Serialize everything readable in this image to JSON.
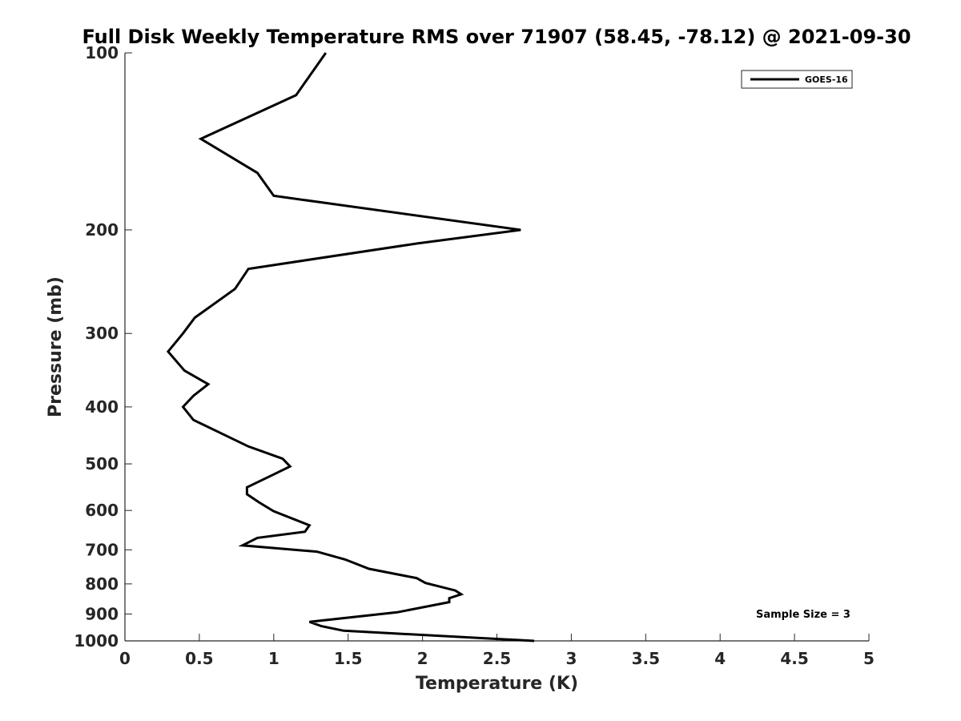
{
  "chart_data": {
    "type": "line",
    "title": "Full Disk Weekly Temperature RMS over 71907 (58.45, -78.12) @ 2021-09-30",
    "xlabel": "Temperature (K)",
    "ylabel": "Pressure (mb)",
    "xlim": [
      0,
      5
    ],
    "ylim": [
      100,
      1000
    ],
    "y_scale": "log",
    "y_reversed": true,
    "grid": false,
    "legend_position": "top-right",
    "x_ticks": [
      0,
      0.5,
      1,
      1.5,
      2,
      2.5,
      3,
      3.5,
      4,
      4.5,
      5
    ],
    "x_tick_labels": [
      "0",
      "0.5",
      "1",
      "1.5",
      "2",
      "2.5",
      "3",
      "3.5",
      "4",
      "4.5",
      "5"
    ],
    "y_ticks": [
      100,
      200,
      300,
      400,
      500,
      600,
      700,
      800,
      900,
      1000
    ],
    "y_tick_labels": [
      "100",
      "200",
      "300",
      "400",
      "500",
      "600",
      "700",
      "800",
      "900",
      "1000"
    ],
    "series": [
      {
        "name": "GOES-16",
        "color": "#000000",
        "x": [
          1.35,
          1.15,
          0.51,
          0.89,
          1.0,
          2.66,
          1.96,
          0.83,
          0.74,
          0.47,
          0.39,
          0.29,
          0.4,
          0.56,
          0.46,
          0.39,
          0.46,
          0.65,
          0.83,
          1.06,
          1.11,
          1.0,
          0.82,
          0.82,
          0.9,
          1.0,
          1.24,
          1.21,
          0.89,
          0.79,
          1.29,
          1.48,
          1.64,
          1.96,
          2.02,
          2.22,
          2.26,
          2.18,
          2.18,
          1.83,
          1.24,
          1.32,
          1.47,
          2.75
        ],
        "y": [
          100,
          118,
          140,
          160,
          175,
          200,
          211,
          233,
          252,
          282,
          300,
          322,
          347,
          366,
          383,
          400,
          421,
          444,
          467,
          490,
          505,
          521,
          548,
          563,
          581,
          602,
          636,
          652,
          668,
          688,
          705,
          727,
          754,
          782,
          797,
          821,
          833,
          846,
          859,
          894,
          928,
          944,
          961,
          1000
        ]
      }
    ],
    "annotations": [
      {
        "text": "Sample Size = 3"
      }
    ]
  }
}
